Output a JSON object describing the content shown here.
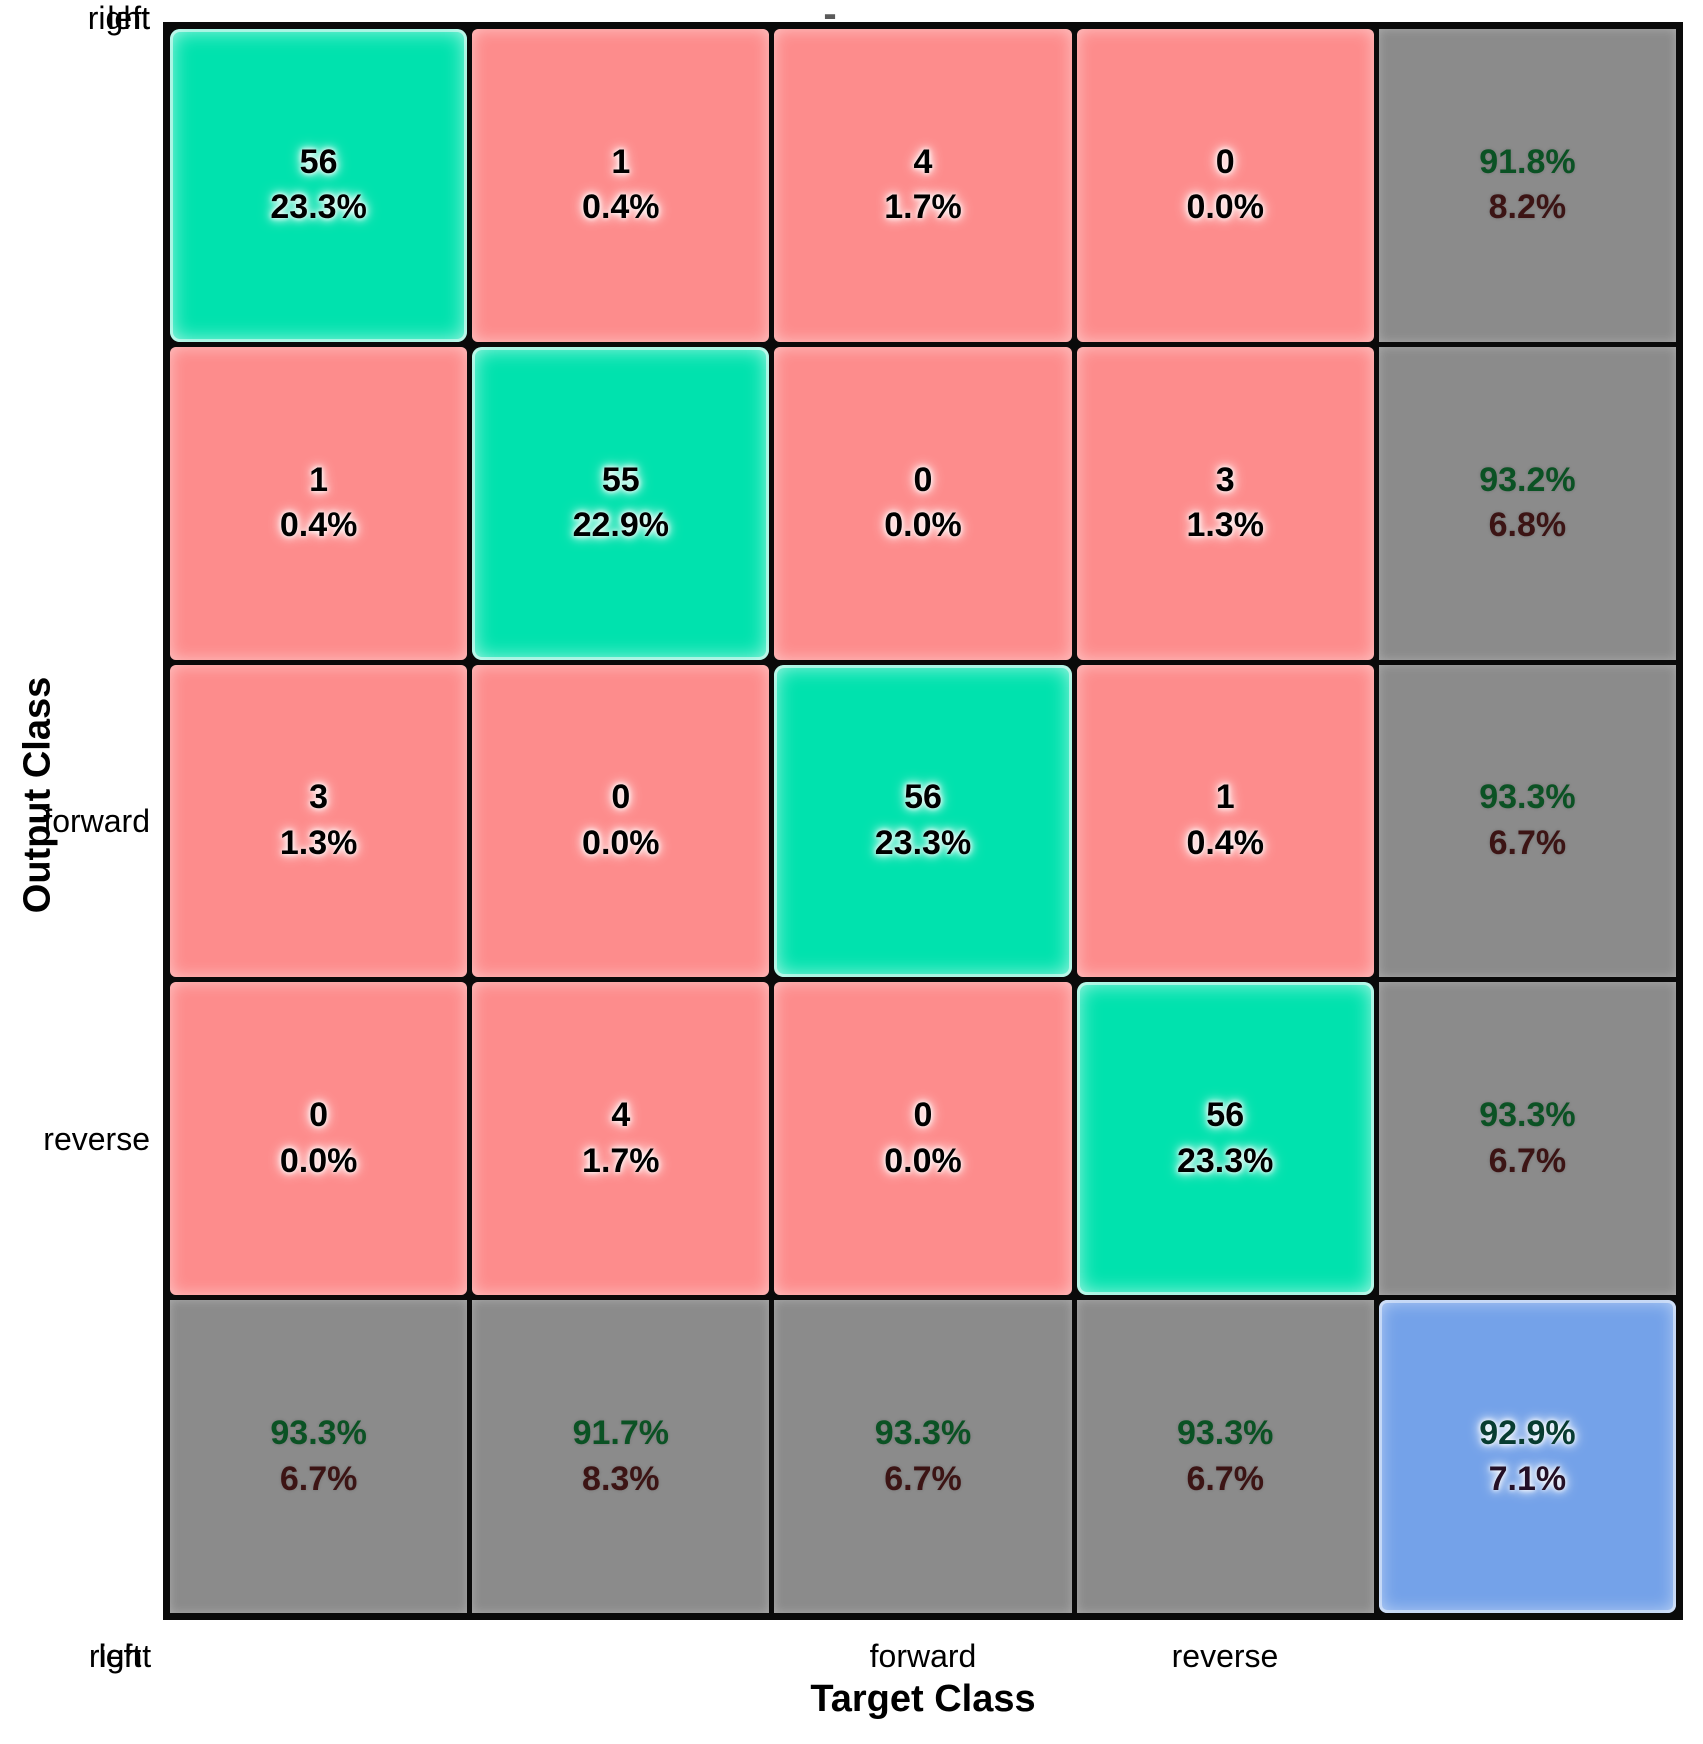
{
  "title_fragment": "-",
  "axes": {
    "ylabel": "Output Class",
    "xlabel": "Target Class",
    "row_ticks": [
      "forward",
      "reverse",
      "left",
      "right"
    ],
    "col_ticks": [
      "forward",
      "reverse",
      "left",
      "right"
    ]
  },
  "cells": [
    {
      "line1": "56",
      "line2": "23.3%",
      "kind": "correct"
    },
    {
      "line1": "1",
      "line2": "0.4%",
      "kind": "incorrect"
    },
    {
      "line1": "4",
      "line2": "1.7%",
      "kind": "incorrect"
    },
    {
      "line1": "0",
      "line2": "0.0%",
      "kind": "incorrect"
    },
    {
      "line1": "91.8%",
      "line2": "8.2%",
      "kind": "summary"
    },
    {
      "line1": "1",
      "line2": "0.4%",
      "kind": "incorrect"
    },
    {
      "line1": "55",
      "line2": "22.9%",
      "kind": "correct"
    },
    {
      "line1": "0",
      "line2": "0.0%",
      "kind": "incorrect"
    },
    {
      "line1": "3",
      "line2": "1.3%",
      "kind": "incorrect"
    },
    {
      "line1": "93.2%",
      "line2": "6.8%",
      "kind": "summary"
    },
    {
      "line1": "3",
      "line2": "1.3%",
      "kind": "incorrect"
    },
    {
      "line1": "0",
      "line2": "0.0%",
      "kind": "incorrect"
    },
    {
      "line1": "56",
      "line2": "23.3%",
      "kind": "correct"
    },
    {
      "line1": "1",
      "line2": "0.4%",
      "kind": "incorrect"
    },
    {
      "line1": "93.3%",
      "line2": "6.7%",
      "kind": "summary"
    },
    {
      "line1": "0",
      "line2": "0.0%",
      "kind": "incorrect"
    },
    {
      "line1": "4",
      "line2": "1.7%",
      "kind": "incorrect"
    },
    {
      "line1": "0",
      "line2": "0.0%",
      "kind": "incorrect"
    },
    {
      "line1": "56",
      "line2": "23.3%",
      "kind": "correct"
    },
    {
      "line1": "93.3%",
      "line2": "6.7%",
      "kind": "summary"
    },
    {
      "line1": "93.3%",
      "line2": "6.7%",
      "kind": "summary"
    },
    {
      "line1": "91.7%",
      "line2": "8.3%",
      "kind": "summary"
    },
    {
      "line1": "93.3%",
      "line2": "6.7%",
      "kind": "summary"
    },
    {
      "line1": "93.3%",
      "line2": "6.7%",
      "kind": "summary"
    },
    {
      "line1": "92.9%",
      "line2": "7.1%",
      "kind": "total"
    }
  ],
  "chart_data": {
    "type": "heatmap",
    "subtype": "confusion-matrix",
    "title": "",
    "xlabel": "Target Class",
    "ylabel": "Output Class",
    "classes": [
      "forward",
      "reverse",
      "left",
      "right"
    ],
    "matrix_counts": [
      [
        56,
        1,
        4,
        0
      ],
      [
        1,
        55,
        0,
        3
      ],
      [
        3,
        0,
        56,
        1
      ],
      [
        0,
        4,
        0,
        56
      ]
    ],
    "matrix_percents": [
      [
        "23.3%",
        "0.4%",
        "1.7%",
        "0.0%"
      ],
      [
        "0.4%",
        "22.9%",
        "0.0%",
        "1.3%"
      ],
      [
        "1.3%",
        "0.0%",
        "23.3%",
        "0.4%"
      ],
      [
        "0.0%",
        "1.7%",
        "0.0%",
        "23.3%"
      ]
    ],
    "row_summary": [
      {
        "correct": "91.8%",
        "incorrect": "8.2%"
      },
      {
        "correct": "93.2%",
        "incorrect": "6.8%"
      },
      {
        "correct": "93.3%",
        "incorrect": "6.7%"
      },
      {
        "correct": "93.3%",
        "incorrect": "6.7%"
      }
    ],
    "col_summary": [
      {
        "correct": "93.3%",
        "incorrect": "6.7%"
      },
      {
        "correct": "91.7%",
        "incorrect": "8.3%"
      },
      {
        "correct": "93.3%",
        "incorrect": "6.7%"
      },
      {
        "correct": "93.3%",
        "incorrect": "6.7%"
      }
    ],
    "overall_accuracy": "92.9%",
    "overall_error": "7.1%",
    "layout": {
      "grid": "5x5",
      "summary_row": "bottom",
      "summary_col": "right"
    },
    "colors": {
      "correct_cell": "#00E2AE",
      "incorrect_cell": "#FD8C8C",
      "summary_cell": "#8B8B8B",
      "total_cell": "#74A2E9",
      "correct_text": "#0B5224",
      "incorrect_text": "#3C1414",
      "gridline": "#0a0a0a"
    }
  }
}
